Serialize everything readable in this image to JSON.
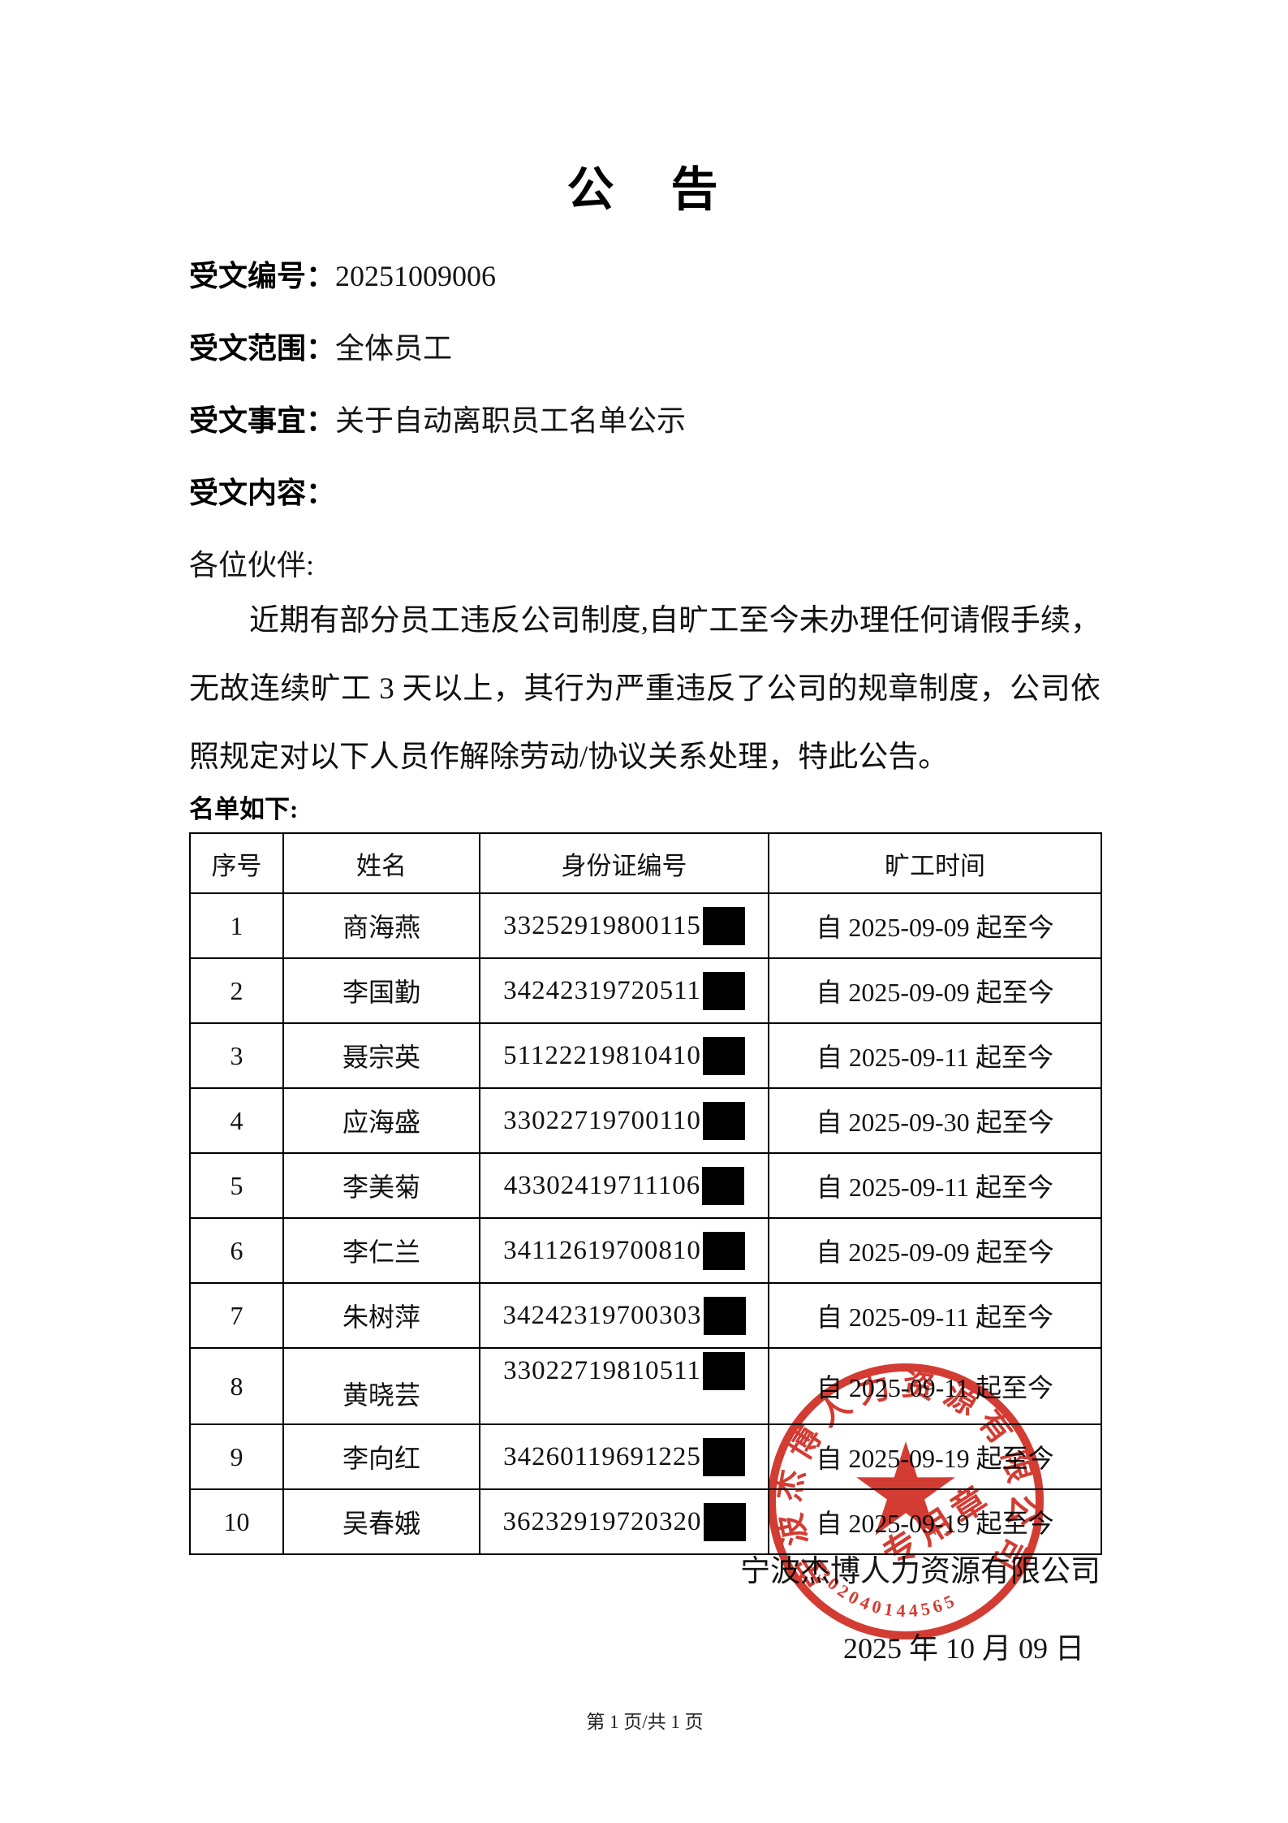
{
  "page": {
    "title": "公　告",
    "footer": "第 1 页/共 1 页"
  },
  "meta": {
    "doc_no_label": "受文编号：",
    "doc_no_value": "20251009006",
    "scope_label": "受文范围：",
    "scope_value": "全体员工",
    "subject_label": "受文事宜：",
    "subject_value": "关于自动离职员工名单公示",
    "content_label": "受文内容：",
    "salutation": "各位伙伴:"
  },
  "body": {
    "paragraph": "近期有部分员工违反公司制度,自旷工至今未办理任何请假手续，无故连续旷工 3 天以上，其行为严重违反了公司的规章制度，公司依照规定对以下人员作解除劳动/协议关系处理，特此公告。",
    "list_label": "名单如下:"
  },
  "table": {
    "headers": [
      "序号",
      "姓名",
      "身份证编号",
      "旷工时间"
    ],
    "rows": [
      {
        "no": "1",
        "name": "商海燕",
        "id": "33252919800115",
        "period": "自 2025-09-09 起至今"
      },
      {
        "no": "2",
        "name": "李国勤",
        "id": "34242319720511",
        "period": "自 2025-09-09 起至今"
      },
      {
        "no": "3",
        "name": "聂宗英",
        "id": "51122219810410",
        "period": "自 2025-09-11 起至今"
      },
      {
        "no": "4",
        "name": "应海盛",
        "id": "33022719700110",
        "period": "自 2025-09-30 起至今"
      },
      {
        "no": "5",
        "name": "李美菊",
        "id": "43302419711106",
        "period": "自 2025-09-11 起至今"
      },
      {
        "no": "6",
        "name": "李仁兰",
        "id": "34112619700810",
        "period": "自 2025-09-09 起至今"
      },
      {
        "no": "7",
        "name": "朱树萍",
        "id": "34242319700303",
        "period": "自 2025-09-11 起至今"
      },
      {
        "no": "8",
        "name": "黄晓芸",
        "id": "33022719810511",
        "period": "自 2025-09-11 起至今"
      },
      {
        "no": "9",
        "name": "李向红",
        "id": "34260119691225",
        "period": "自 2025-09-19 起至今"
      },
      {
        "no": "10",
        "name": "吴春娥",
        "id": "36232919720320",
        "period": "自 2025-09-19 起至今"
      }
    ]
  },
  "signoff": {
    "company": "宁波杰博人力资源有限公司",
    "date": "2025 年 10 月 09 日"
  },
  "stamp": {
    "arc_text": "宁波杰博人力资源有限公司",
    "number": "3302040144565",
    "inner_text": "专用章",
    "color": "#cf2b21"
  }
}
